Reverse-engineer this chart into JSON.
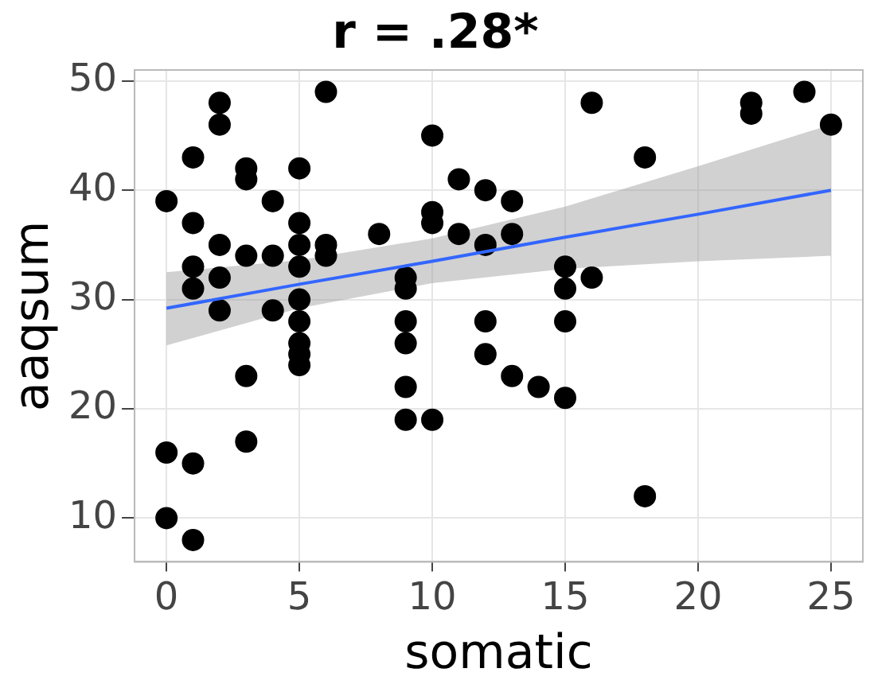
{
  "chart_data": {
    "type": "scatter",
    "title": "r = .28*",
    "xlabel": "somatic",
    "ylabel": "aaqsum",
    "xlim": [
      -1.2,
      26.2
    ],
    "xticks": [
      0,
      5,
      10,
      15,
      20,
      25
    ],
    "ylim": [
      6,
      51
    ],
    "yticks": [
      10,
      20,
      30,
      40,
      50
    ],
    "grid": true,
    "marker": "circle",
    "series": [
      {
        "color": "#000000",
        "x": [
          0,
          0,
          0,
          1,
          1,
          1,
          1,
          1,
          1,
          2,
          2,
          2,
          2,
          2,
          3,
          3,
          3,
          3,
          3,
          4,
          4,
          4,
          5,
          5,
          5,
          5,
          5,
          5,
          5,
          5,
          5,
          6,
          6,
          6,
          8,
          9,
          9,
          9,
          9,
          9,
          9,
          10,
          10,
          10,
          10,
          11,
          11,
          12,
          12,
          12,
          12,
          13,
          13,
          13,
          14,
          15,
          15,
          15,
          15,
          16,
          16,
          18,
          18,
          22,
          22,
          24,
          25
        ],
        "values": [
          39,
          16,
          10,
          43,
          37,
          33,
          31,
          15,
          8,
          48,
          46,
          35,
          32,
          29,
          42,
          41,
          34,
          23,
          17,
          39,
          34,
          29,
          42,
          37,
          35,
          33,
          30,
          28,
          26,
          25,
          24,
          49,
          35,
          34,
          36,
          32,
          31,
          28,
          26,
          22,
          19,
          45,
          38,
          37,
          19,
          41,
          36,
          40,
          35,
          28,
          25,
          39,
          36,
          23,
          22,
          33,
          31,
          28,
          21,
          48,
          32,
          43,
          12,
          48,
          47,
          49,
          46
        ]
      },
      {
        "type": "line",
        "color": "#3366ff",
        "marker": "none",
        "x": [
          0,
          5,
          10,
          15,
          20,
          25
        ],
        "values": [
          29.2,
          31.4,
          33.5,
          35.7,
          37.8,
          40
        ],
        "lower": [
          25.8,
          29.2,
          31.5,
          32.8,
          33.5,
          34
        ],
        "upper": [
          32.5,
          33.6,
          35.6,
          38.5,
          42.2,
          46
        ]
      }
    ]
  }
}
